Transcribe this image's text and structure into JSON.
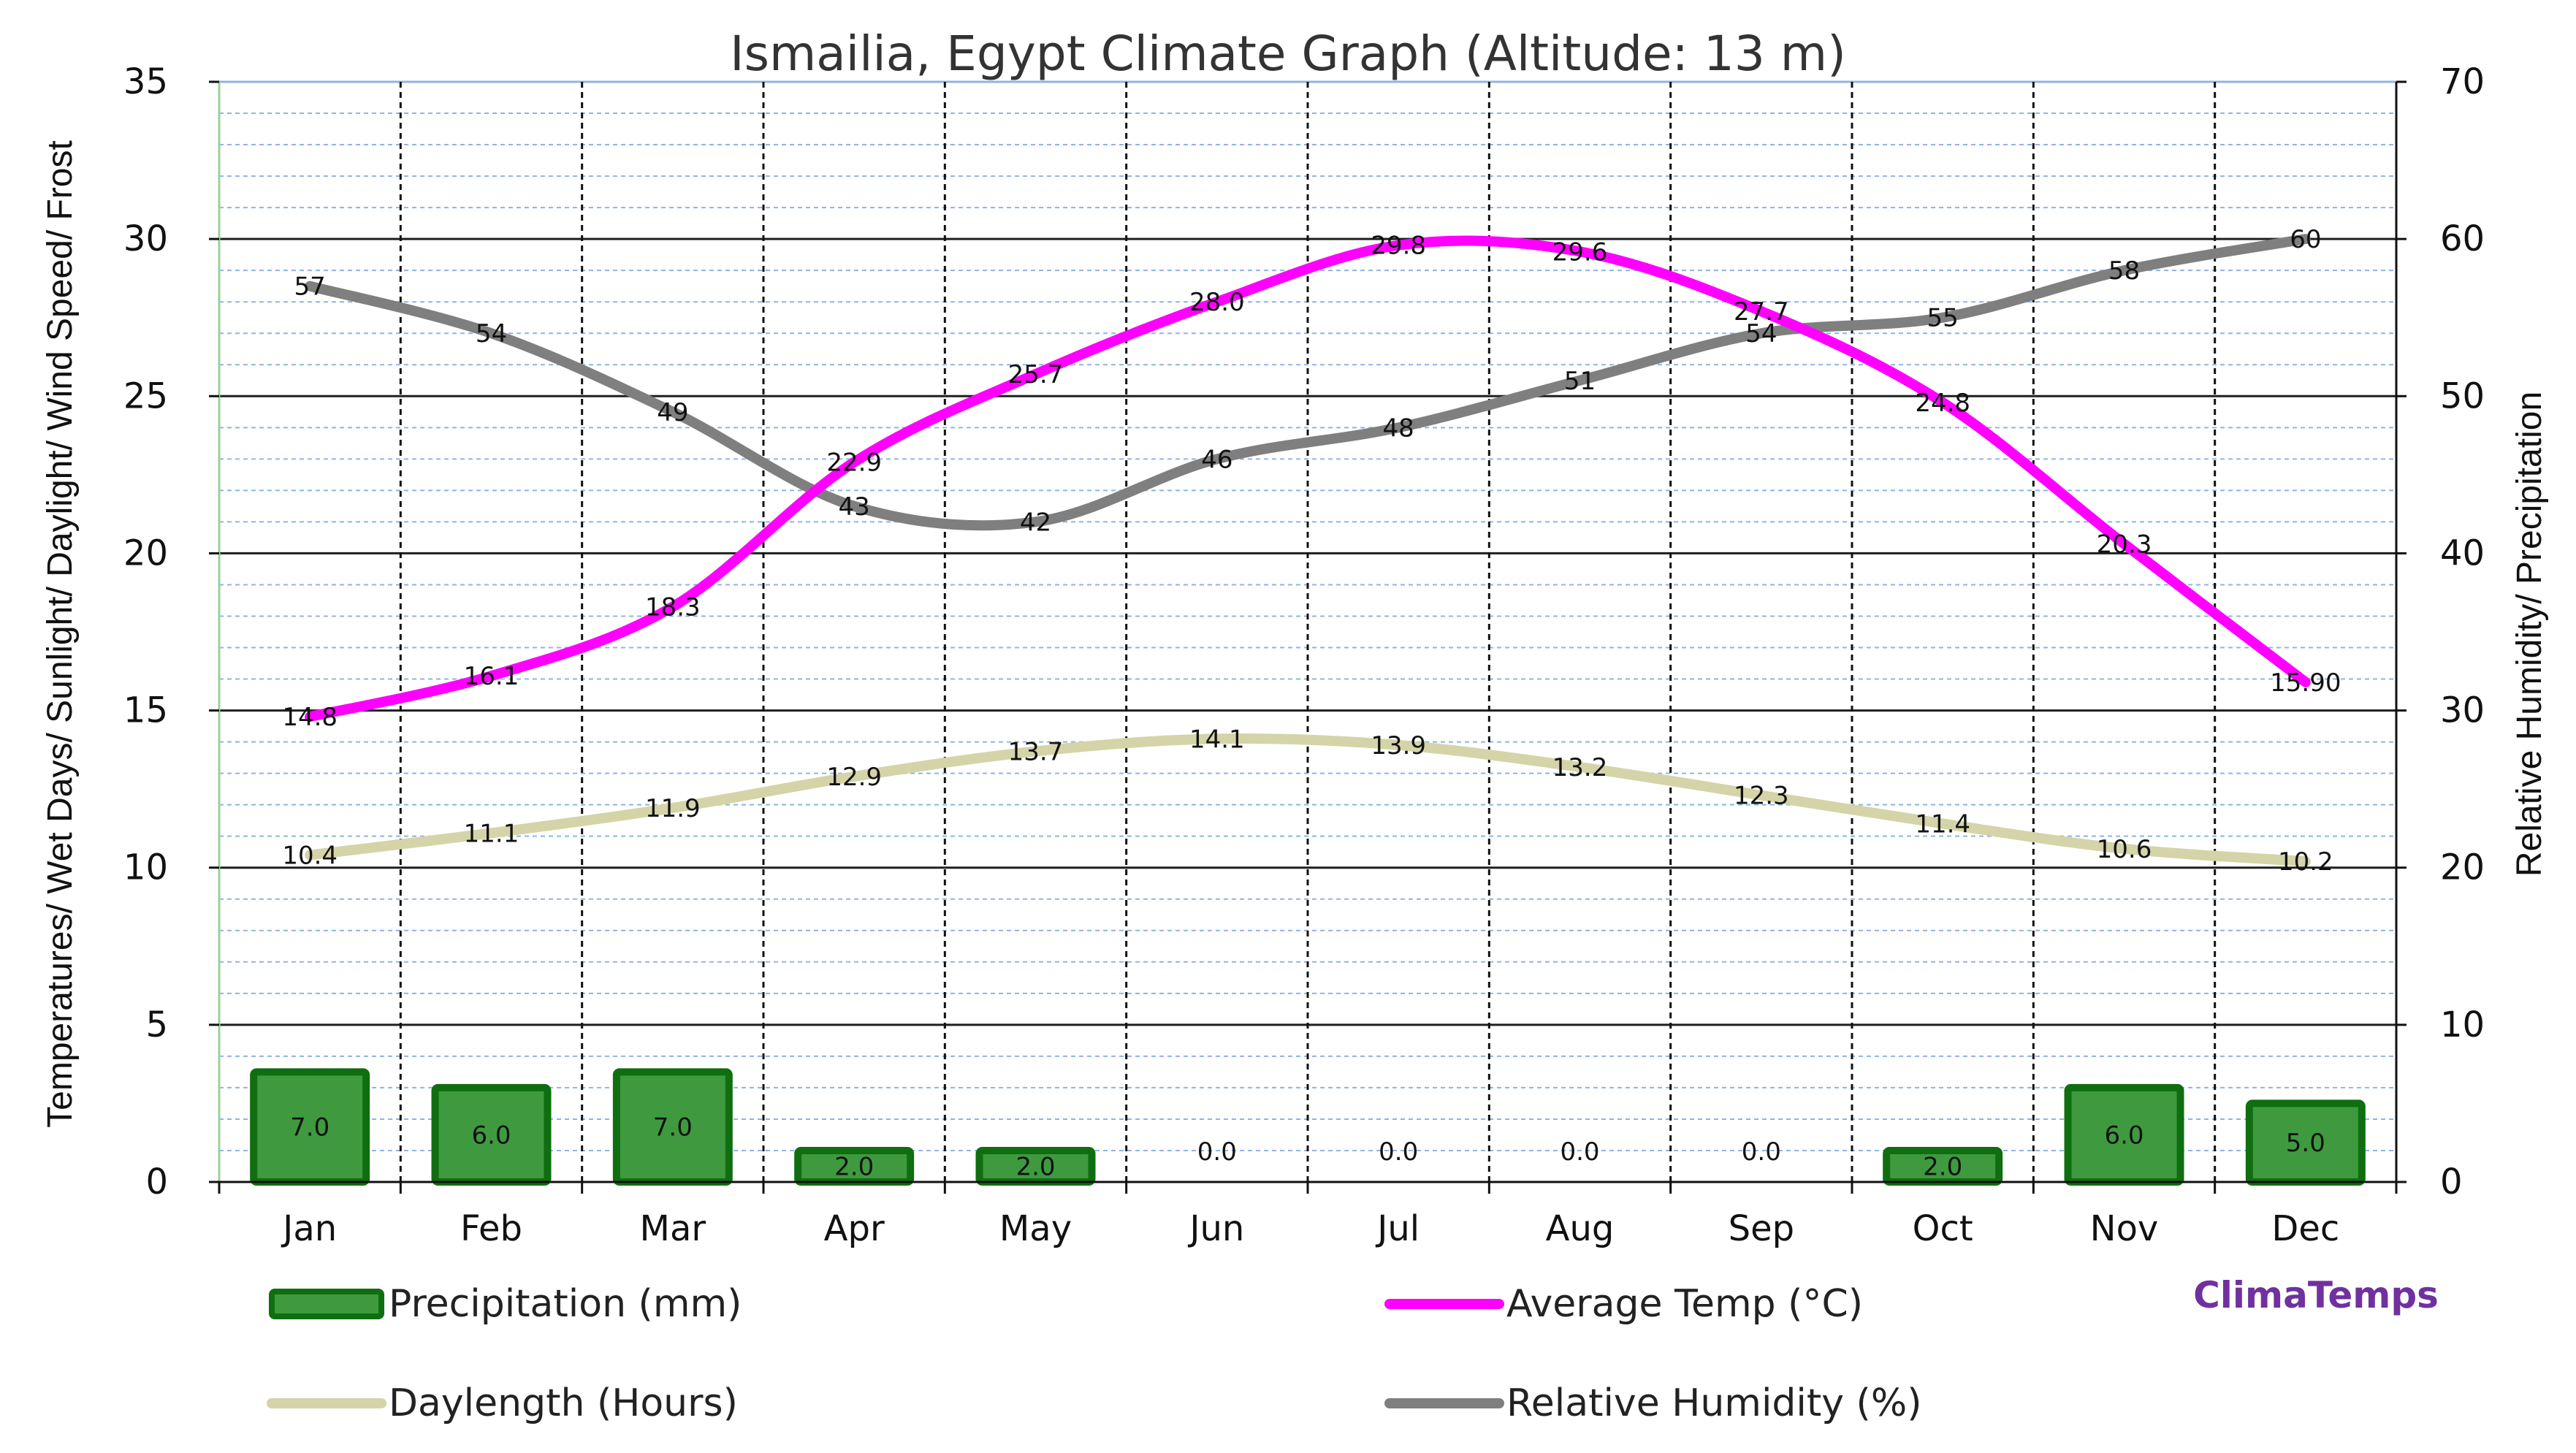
{
  "chart_data": {
    "type": "line",
    "title": "Ismailia, Egypt Climate Graph (Altitude: 13 m)",
    "ylabel": "Temperatures/ Wet Days/ Sunlight/ Daylight/ Wind Speed/ Frost",
    "y2label": "Relative Humidity/ Precipitation",
    "categories": [
      "Jan",
      "Feb",
      "Mar",
      "Apr",
      "May",
      "Jun",
      "Jul",
      "Aug",
      "Sep",
      "Oct",
      "Nov",
      "Dec"
    ],
    "ylim": [
      0,
      35
    ],
    "y2lim": [
      0,
      70
    ],
    "yticks": [
      "0",
      "5",
      "10",
      "15",
      "20",
      "25",
      "30",
      "35"
    ],
    "y2ticks": [
      "0",
      "10",
      "20",
      "30",
      "40",
      "50",
      "60",
      "70"
    ],
    "grid": true,
    "legend_position": "bottom",
    "series": [
      {
        "name": "Precipitation (mm)",
        "type": "bar",
        "axis": "right",
        "color": "#2e7d32",
        "values": [
          7.0,
          6.0,
          7.0,
          2.0,
          2.0,
          0.0,
          0.0,
          0.0,
          0.0,
          2.0,
          6.0,
          5.0
        ],
        "labels": [
          "7.0",
          "6.0",
          "7.0",
          "2.0",
          "2.0",
          "0.0",
          "0.0",
          "0.0",
          "0.0",
          "2.0",
          "6.0",
          "5.0"
        ]
      },
      {
        "name": "Average Temp (°C)",
        "type": "line",
        "axis": "left",
        "color": "#ff00ff",
        "values": [
          14.8,
          16.1,
          18.3,
          22.9,
          25.7,
          28.0,
          29.8,
          29.6,
          27.7,
          24.8,
          20.3,
          15.9
        ],
        "labels": [
          "14.8",
          "16.1",
          "18.3",
          "22.9",
          "25.7",
          "28.0",
          "29.8",
          "29.6",
          "27.7",
          "24.8",
          "20.3",
          "15.90"
        ]
      },
      {
        "name": "Daylength (Hours)",
        "type": "line",
        "axis": "left",
        "color": "#d4d4a8",
        "values": [
          10.4,
          11.1,
          11.9,
          12.9,
          13.7,
          14.1,
          13.9,
          13.2,
          12.3,
          11.4,
          10.6,
          10.2
        ],
        "labels": [
          "10.4",
          "11.1",
          "11.9",
          "12.9",
          "13.7",
          "14.1",
          "13.9",
          "13.2",
          "12.3",
          "11.4",
          "10.6",
          "10.2"
        ]
      },
      {
        "name": "Relative Humidity (%)",
        "type": "line",
        "axis": "right",
        "color": "#7f7f7f",
        "values": [
          57,
          54,
          49,
          43,
          42,
          46,
          48,
          51,
          54,
          55,
          58,
          60
        ],
        "labels": [
          "57",
          "54",
          "49",
          "43",
          "42",
          "46",
          "48",
          "51",
          "54",
          "55",
          "58",
          "60"
        ]
      }
    ]
  },
  "brand": "ClimaTemps",
  "colors": {
    "plot_bg": "#ffffff",
    "minor_grid": "#8fb4e3",
    "major_grid": "#1f1f1f",
    "bar_fill": "#3f9a3f",
    "bar_edge": "#0f6e0f"
  }
}
